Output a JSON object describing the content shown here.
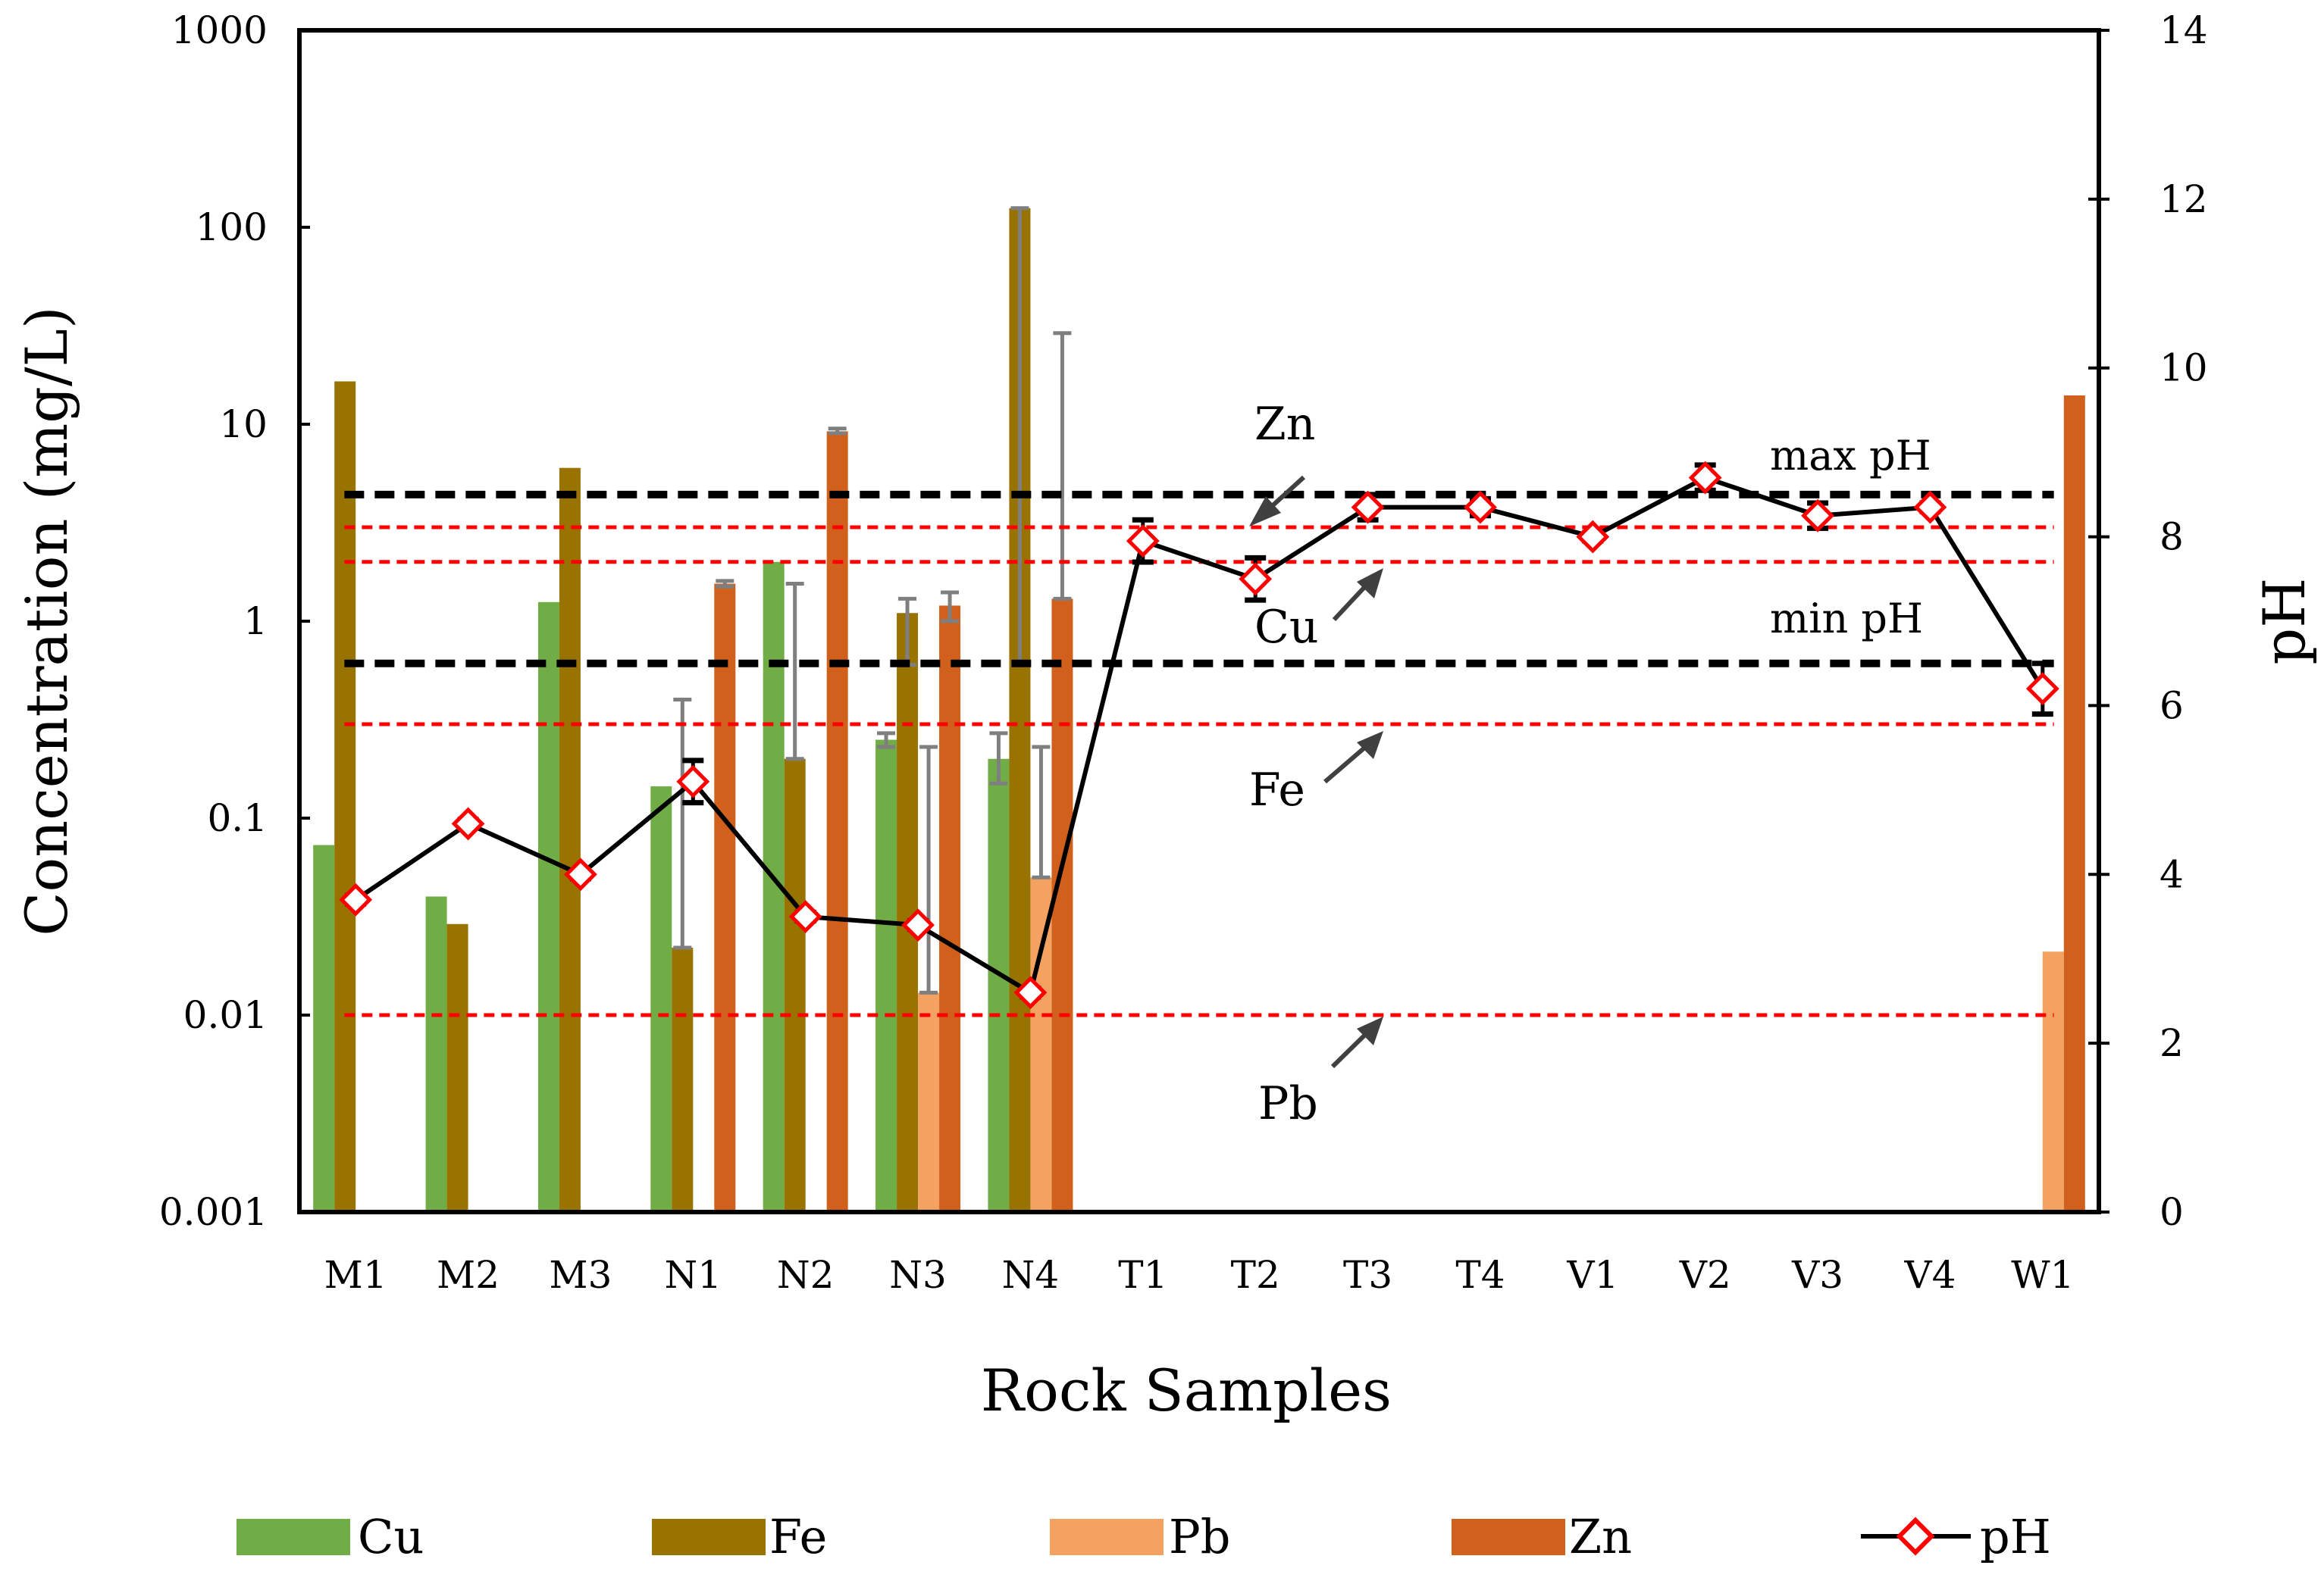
{
  "chart_data": {
    "type": "bar",
    "title": "",
    "xlabel": "Rock Samples",
    "ylabel": "Concentration (mg/L)",
    "y2label": "pH",
    "yscale": "log",
    "ylim": [
      0.001,
      1000
    ],
    "y2lim": [
      0,
      14
    ],
    "yticks": [
      "0.001",
      "0.01",
      "0.1",
      "1",
      "10",
      "100",
      "1000"
    ],
    "y2ticks": [
      "0",
      "2",
      "4",
      "6",
      "8",
      "10",
      "12",
      "14"
    ],
    "categories": [
      "M1",
      "M2",
      "M3",
      "N1",
      "N2",
      "N3",
      "N4",
      "T1",
      "T2",
      "T3",
      "T4",
      "V1",
      "V2",
      "V3",
      "V4",
      "W1"
    ],
    "series": [
      {
        "name": "Cu",
        "color": "#70ad47",
        "values": [
          0.073,
          0.04,
          1.25,
          0.145,
          2.0,
          0.25,
          0.2,
          null,
          null,
          null,
          null,
          null,
          null,
          null,
          null,
          null
        ],
        "errors": [
          null,
          null,
          null,
          null,
          null,
          [
            0.23,
            0.27
          ],
          [
            0.15,
            0.27
          ],
          null,
          null,
          null,
          null,
          null,
          null,
          null,
          null,
          null
        ]
      },
      {
        "name": "Fe",
        "color": "#997300",
        "values": [
          16.5,
          0.029,
          6.0,
          0.022,
          0.2,
          1.1,
          125,
          null,
          null,
          null,
          null,
          null,
          null,
          null,
          null,
          null
        ],
        "errors": [
          null,
          null,
          null,
          [
            0.022,
            0.4
          ],
          [
            0.2,
            1.55
          ],
          [
            0.6,
            1.3
          ],
          [
            0.6,
            125
          ],
          null,
          null,
          null,
          null,
          null,
          null,
          null,
          null,
          null
        ]
      },
      {
        "name": "Pb",
        "color": "#f4a262",
        "values": [
          null,
          null,
          null,
          null,
          null,
          0.013,
          0.05,
          null,
          null,
          null,
          null,
          null,
          null,
          null,
          null,
          0.021
        ],
        "errors": [
          null,
          null,
          null,
          null,
          null,
          [
            0.013,
            0.23
          ],
          [
            0.05,
            0.23
          ],
          null,
          null,
          null,
          null,
          null,
          null,
          null,
          null,
          null
        ]
      },
      {
        "name": "Zn",
        "color": "#d0601c",
        "values": [
          null,
          null,
          null,
          1.55,
          9.2,
          1.2,
          1.3,
          null,
          null,
          null,
          null,
          null,
          null,
          null,
          null,
          14.0
        ],
        "errors": [
          null,
          null,
          null,
          [
            1.5,
            1.6
          ],
          [
            9.0,
            9.5
          ],
          [
            1.0,
            1.4
          ],
          [
            1.3,
            29
          ],
          null,
          null,
          null,
          null,
          null,
          null,
          null,
          null,
          null
        ]
      }
    ],
    "line": {
      "name": "pH",
      "color": "#000000",
      "marker_color": "#ff0000",
      "values": [
        3.7,
        4.6,
        4.0,
        5.1,
        3.5,
        3.4,
        2.6,
        7.95,
        7.5,
        8.35,
        8.35,
        8.0,
        8.7,
        8.25,
        8.35,
        6.2
      ],
      "errors": [
        0.05,
        0.05,
        0.05,
        0.25,
        0.05,
        0.05,
        0.05,
        0.25,
        0.25,
        0.15,
        0.1,
        0.05,
        0.15,
        0.15,
        0.05,
        0.3
      ]
    },
    "reference_lines": [
      {
        "label": "max pH",
        "axis": "pH",
        "value": 8.5,
        "color": "#000000"
      },
      {
        "label": "min pH",
        "axis": "pH",
        "value": 6.5,
        "color": "#000000"
      },
      {
        "label": "Zn",
        "axis": "conc",
        "value": 3.0,
        "color": "#ff0000"
      },
      {
        "label": "Cu",
        "axis": "conc",
        "value": 2.0,
        "color": "#ff0000"
      },
      {
        "label": "Fe",
        "axis": "conc",
        "value": 0.3,
        "color": "#ff0000"
      },
      {
        "label": "Pb",
        "axis": "conc",
        "value": 0.01,
        "color": "#ff0000"
      }
    ],
    "annotations": {
      "zn": "Zn",
      "cu": "Cu",
      "fe": "Fe",
      "pb": "Pb",
      "max_ph": "max pH",
      "min_ph": "min pH"
    },
    "legend": [
      "Cu",
      "Fe",
      "Pb",
      "Zn",
      "pH"
    ],
    "legend_position": "bottom",
    "grid": false
  }
}
